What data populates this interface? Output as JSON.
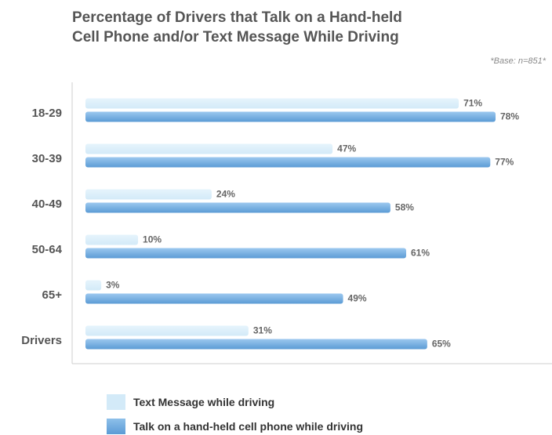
{
  "title_line1": "Percentage of Drivers that Talk on a Hand-held",
  "title_line2": "Cell Phone and/or Text Message While Driving",
  "base_note": "*Base: n=851*",
  "colors": {
    "text_message": "#d3eaf8",
    "talk_handheld": "#5b9bd5",
    "axis": "#cfcfcf"
  },
  "chart_data": {
    "type": "bar",
    "orientation": "horizontal",
    "title": "Percentage of Drivers that Talk on a Hand-held Cell Phone and/or Text Message While Driving",
    "categories": [
      "18-29",
      "30-39",
      "40-49",
      "50-64",
      "65+",
      "Drivers"
    ],
    "series": [
      {
        "name": "Text Message while driving",
        "values": [
          71,
          47,
          24,
          10,
          3,
          31
        ],
        "labels": [
          "71%",
          "47%",
          "24%",
          "10%",
          "3%",
          "31%"
        ]
      },
      {
        "name": "Talk on a hand-held cell phone while driving",
        "values": [
          78,
          77,
          58,
          61,
          49,
          65
        ],
        "labels": [
          "78%",
          "77%",
          "58%",
          "61%",
          "49%",
          "65%"
        ]
      }
    ],
    "xlim": [
      0,
      100
    ],
    "grid": false,
    "legend_position": "bottom"
  },
  "legend": [
    {
      "label": "Text Message while driving"
    },
    {
      "label": "Talk on a hand-held cell phone while driving"
    }
  ]
}
